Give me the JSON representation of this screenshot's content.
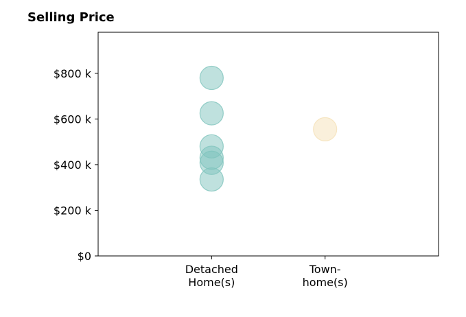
{
  "chart_data": {
    "type": "scatter",
    "title": "Selling Price",
    "xlabel": "",
    "ylabel": "",
    "categories": [
      [
        "Detached",
        "Home(s)"
      ],
      [
        "Town-",
        "home(s)"
      ]
    ],
    "series": [
      {
        "category_index": 0,
        "color": "#7fc4bd",
        "values": [
          780000,
          625000,
          480000,
          430000,
          408000,
          335000
        ]
      },
      {
        "category_index": 1,
        "color": "#f5e1b8",
        "values": [
          555000
        ]
      }
    ],
    "ylim": [
      0,
      980000
    ],
    "yticks": [
      0,
      200000,
      400000,
      600000,
      800000
    ],
    "ytick_labels": [
      "$0",
      "$200 k",
      "$400 k",
      "$600 k",
      "$800 k"
    ],
    "grid": false
  }
}
